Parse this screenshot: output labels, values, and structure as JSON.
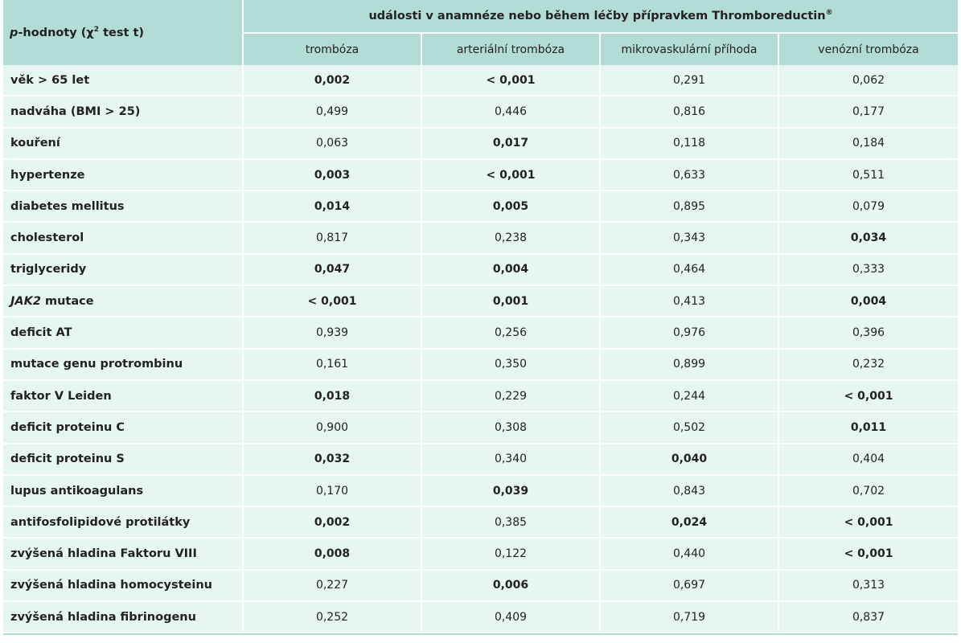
{
  "table": {
    "row_header": {
      "italic": "p",
      "rest": "-hodnoty (χ",
      "sup": "2",
      "tail": " test t)"
    },
    "group_header": "události v anamnéze nebo během léčby přípravkem Thromboreductin",
    "group_header_sup": "®",
    "columns": [
      "trombóza",
      "arteriální trombóza",
      "mikrovaskulární příhoda",
      "venózní trombóza"
    ],
    "rows": [
      {
        "label": "věk > 65 let",
        "values": [
          {
            "v": "0,002",
            "bold": true
          },
          {
            "v": "< 0,001",
            "bold": true
          },
          {
            "v": "0,291",
            "bold": false
          },
          {
            "v": "0,062",
            "bold": false
          }
        ]
      },
      {
        "label": "nadváha (BMI > 25)",
        "values": [
          {
            "v": "0,499",
            "bold": false
          },
          {
            "v": "0,446",
            "bold": false
          },
          {
            "v": "0,816",
            "bold": false
          },
          {
            "v": "0,177",
            "bold": false
          }
        ]
      },
      {
        "label": "kouření",
        "values": [
          {
            "v": "0,063",
            "bold": false
          },
          {
            "v": "0,017",
            "bold": true
          },
          {
            "v": "0,118",
            "bold": false
          },
          {
            "v": "0,184",
            "bold": false
          }
        ]
      },
      {
        "label": "hypertenze",
        "values": [
          {
            "v": "0,003",
            "bold": true
          },
          {
            "v": "< 0,001",
            "bold": true
          },
          {
            "v": "0,633",
            "bold": false
          },
          {
            "v": "0,511",
            "bold": false
          }
        ]
      },
      {
        "label": "diabetes mellitus",
        "values": [
          {
            "v": "0,014",
            "bold": true
          },
          {
            "v": "0,005",
            "bold": true
          },
          {
            "v": "0,895",
            "bold": false
          },
          {
            "v": "0,079",
            "bold": false
          }
        ]
      },
      {
        "label": "cholesterol",
        "values": [
          {
            "v": "0,817",
            "bold": false
          },
          {
            "v": "0,238",
            "bold": false
          },
          {
            "v": "0,343",
            "bold": false
          },
          {
            "v": "0,034",
            "bold": true
          }
        ]
      },
      {
        "label": "triglyceridy",
        "values": [
          {
            "v": "0,047",
            "bold": true
          },
          {
            "v": "0,004",
            "bold": true
          },
          {
            "v": "0,464",
            "bold": false
          },
          {
            "v": "0,333",
            "bold": false
          }
        ]
      },
      {
        "label": "JAK2 mutace",
        "label_italic": "JAK2",
        "label_rest": " mutace",
        "values": [
          {
            "v": "< 0,001",
            "bold": true
          },
          {
            "v": "0,001",
            "bold": true
          },
          {
            "v": "0,413",
            "bold": false
          },
          {
            "v": "0,004",
            "bold": true
          }
        ]
      },
      {
        "label": "deficit AT",
        "values": [
          {
            "v": "0,939",
            "bold": false
          },
          {
            "v": "0,256",
            "bold": false
          },
          {
            "v": "0,976",
            "bold": false
          },
          {
            "v": "0,396",
            "bold": false
          }
        ]
      },
      {
        "label": "mutace genu protrombinu",
        "values": [
          {
            "v": "0,161",
            "bold": false
          },
          {
            "v": "0,350",
            "bold": false
          },
          {
            "v": "0,899",
            "bold": false
          },
          {
            "v": "0,232",
            "bold": false
          }
        ]
      },
      {
        "label": "faktor V Leiden",
        "values": [
          {
            "v": "0,018",
            "bold": true
          },
          {
            "v": "0,229",
            "bold": false
          },
          {
            "v": "0,244",
            "bold": false
          },
          {
            "v": "< 0,001",
            "bold": true
          }
        ]
      },
      {
        "label": "deficit proteinu C",
        "values": [
          {
            "v": "0,900",
            "bold": false
          },
          {
            "v": "0,308",
            "bold": false
          },
          {
            "v": "0,502",
            "bold": false
          },
          {
            "v": "0,011",
            "bold": true
          }
        ]
      },
      {
        "label": "deficit proteinu S",
        "values": [
          {
            "v": "0,032",
            "bold": true
          },
          {
            "v": "0,340",
            "bold": false
          },
          {
            "v": "0,040",
            "bold": true
          },
          {
            "v": "0,404",
            "bold": false
          }
        ]
      },
      {
        "label": "lupus antikoagulans",
        "values": [
          {
            "v": "0,170",
            "bold": false
          },
          {
            "v": "0,039",
            "bold": true
          },
          {
            "v": "0,843",
            "bold": false
          },
          {
            "v": "0,702",
            "bold": false
          }
        ]
      },
      {
        "label": "antifosfolipidové protilátky",
        "values": [
          {
            "v": "0,002",
            "bold": true
          },
          {
            "v": "0,385",
            "bold": false
          },
          {
            "v": "0,024",
            "bold": true
          },
          {
            "v": "< 0,001",
            "bold": true
          }
        ]
      },
      {
        "label": "zvýšená hladina Faktoru VIII",
        "values": [
          {
            "v": "0,008",
            "bold": true
          },
          {
            "v": "0,122",
            "bold": false
          },
          {
            "v": "0,440",
            "bold": false
          },
          {
            "v": "< 0,001",
            "bold": true
          }
        ]
      },
      {
        "label": "zvýšená hladina homocysteinu",
        "values": [
          {
            "v": "0,227",
            "bold": false
          },
          {
            "v": "0,006",
            "bold": true
          },
          {
            "v": "0,697",
            "bold": false
          },
          {
            "v": "0,313",
            "bold": false
          }
        ]
      },
      {
        "label": "zvýšená hladina fibrinogenu",
        "values": [
          {
            "v": "0,252",
            "bold": false
          },
          {
            "v": "0,409",
            "bold": false
          },
          {
            "v": "0,719",
            "bold": false
          },
          {
            "v": "0,837",
            "bold": false
          }
        ]
      }
    ],
    "colors": {
      "header_bg": "#b2ddd6",
      "row_bg": "#e8f6f3",
      "divider": "#ffffff"
    }
  }
}
